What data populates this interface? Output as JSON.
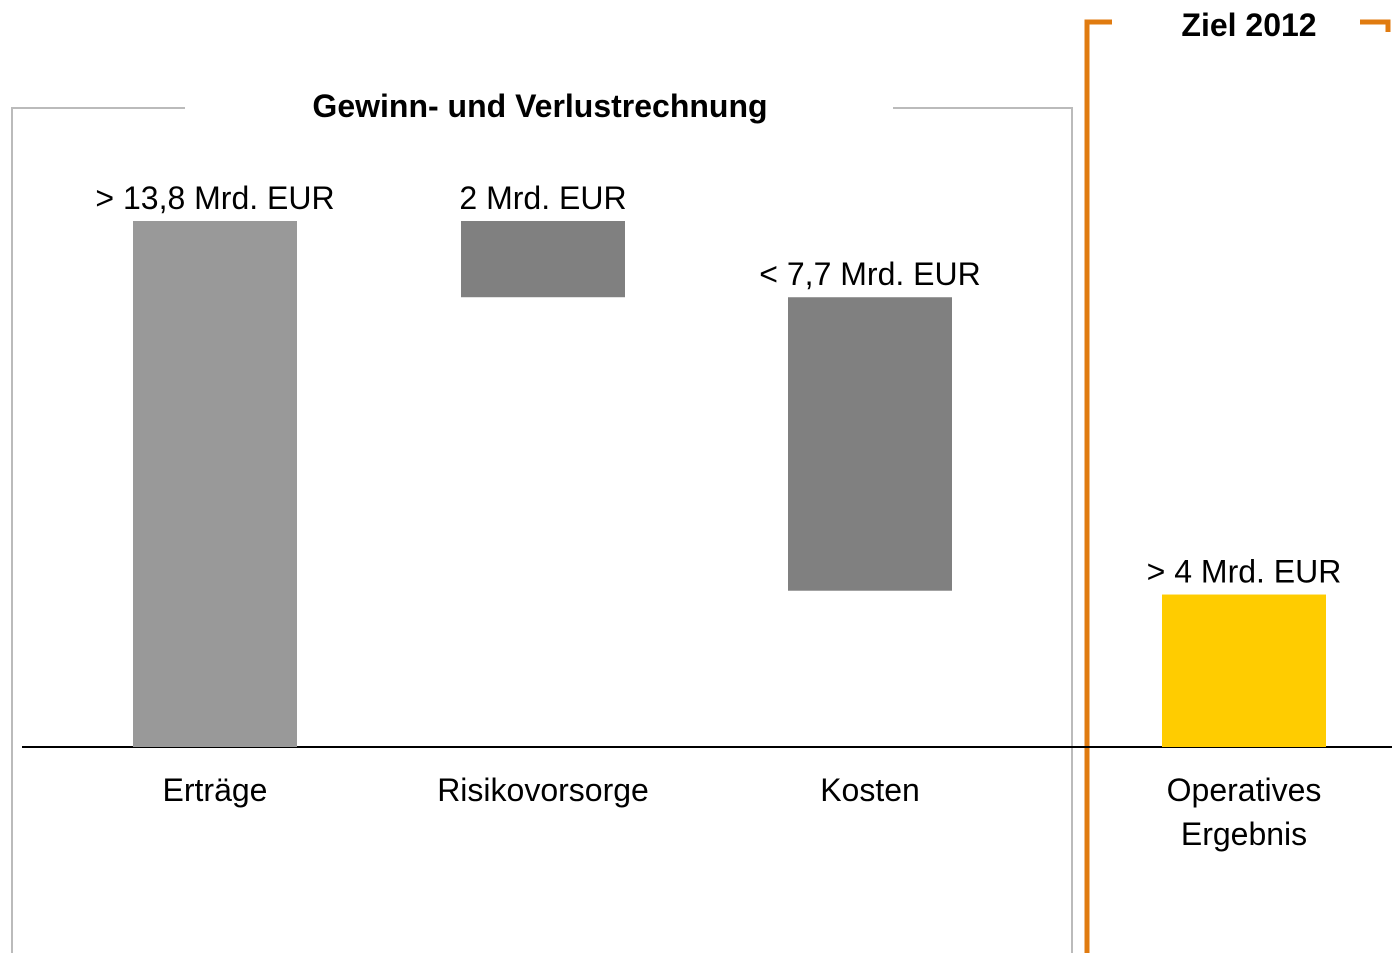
{
  "chart_data": {
    "type": "waterfall",
    "title": "Gewinn- und Verlustrechnung",
    "target_label": "Ziel 2012",
    "categories": [
      "Erträge",
      "Risikovorsorge",
      "Kosten",
      "Operatives Ergebnis"
    ],
    "values": [
      13.8,
      2,
      7.7,
      4
    ],
    "value_labels": [
      "> 13,8 Mrd. EUR",
      "2 Mrd. EUR",
      "< 7,7 Mrd. EUR",
      "> 4 Mrd. EUR"
    ],
    "steps": [
      "total",
      "decrease",
      "decrease",
      "total"
    ],
    "colors": [
      "#999999",
      "#808080",
      "#808080",
      "#ffcc00"
    ],
    "ylim": [
      0,
      13.8
    ]
  }
}
